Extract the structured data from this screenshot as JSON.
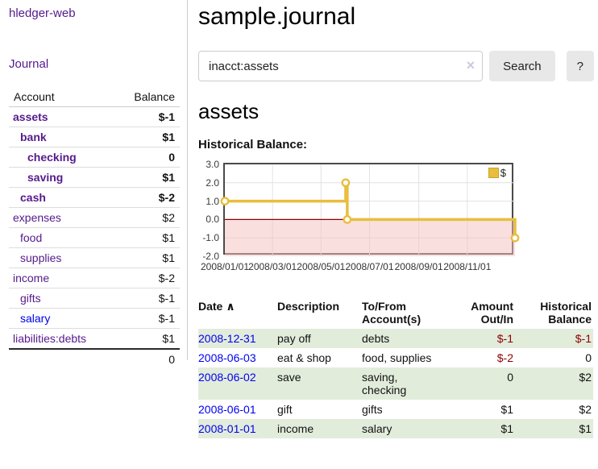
{
  "app": {
    "brand": "hledger-web",
    "nav_journal": "Journal"
  },
  "sidebar": {
    "account_header": "Account",
    "balance_header": "Balance",
    "accounts": [
      {
        "name": "assets",
        "balance": "$-1",
        "depth": 0,
        "bold": true,
        "neg": "strong",
        "link_color": "purple"
      },
      {
        "name": "bank",
        "balance": "$1",
        "depth": 1,
        "bold": true,
        "neg": "none",
        "link_color": "purple"
      },
      {
        "name": "checking",
        "balance": "0",
        "depth": 2,
        "bold": true,
        "neg": "none",
        "link_color": "purple"
      },
      {
        "name": "saving",
        "balance": "$1",
        "depth": 2,
        "bold": true,
        "neg": "none",
        "link_color": "purple"
      },
      {
        "name": "cash",
        "balance": "$-2",
        "depth": 1,
        "bold": true,
        "neg": "strong",
        "link_color": "purple"
      },
      {
        "name": "expenses",
        "balance": "$2",
        "depth": 0,
        "bold": false,
        "neg": "none",
        "link_color": "purple"
      },
      {
        "name": "food",
        "balance": "$1",
        "depth": 1,
        "bold": false,
        "neg": "none",
        "link_color": "purple"
      },
      {
        "name": "supplies",
        "balance": "$1",
        "depth": 1,
        "bold": false,
        "neg": "none",
        "link_color": "purple"
      },
      {
        "name": "income",
        "balance": "$-2",
        "depth": 0,
        "bold": false,
        "neg": "pale",
        "link_color": "purple"
      },
      {
        "name": "gifts",
        "balance": "$-1",
        "depth": 1,
        "bold": false,
        "neg": "pale",
        "link_color": "purple"
      },
      {
        "name": "salary",
        "balance": "$-1",
        "depth": 1,
        "bold": false,
        "neg": "pale",
        "link_color": "blue"
      },
      {
        "name": "liabilities:debts",
        "balance": "$1",
        "depth": 0,
        "bold": false,
        "neg": "none",
        "link_color": "purple"
      }
    ],
    "total": "0"
  },
  "header": {
    "title": "sample.journal"
  },
  "search": {
    "value": "inacct:assets",
    "clear_icon": "×",
    "button": "Search",
    "help_button": "?"
  },
  "register": {
    "heading": "assets",
    "table": {
      "headers": [
        {
          "label": "Date",
          "align": "left",
          "sort_icon": "∧",
          "interactable": true
        },
        {
          "label": "Description",
          "align": "left"
        },
        {
          "label": "To/From\nAccount(s)",
          "align": "left"
        },
        {
          "label": "Amount\nOut/In",
          "align": "right"
        },
        {
          "label": "Historical\nBalance",
          "align": "right"
        }
      ],
      "rows": [
        {
          "date": "2008-12-31",
          "description": "pay off",
          "accounts": "debts",
          "amount": "$-1",
          "balance": "$-1",
          "amount_neg": true,
          "balance_neg": true,
          "stripe": true
        },
        {
          "date": "2008-06-03",
          "description": "eat & shop",
          "accounts": "food, supplies",
          "amount": "$-2",
          "balance": "0",
          "amount_neg": true,
          "balance_neg": false,
          "stripe": false
        },
        {
          "date": "2008-06-02",
          "description": "save",
          "accounts": "saving,\nchecking",
          "amount": "0",
          "balance": "$2",
          "amount_neg": false,
          "balance_neg": false,
          "stripe": true
        },
        {
          "date": "2008-06-01",
          "description": "gift",
          "accounts": "gifts",
          "amount": "$1",
          "balance": "$2",
          "amount_neg": false,
          "balance_neg": false,
          "stripe": false
        },
        {
          "date": "2008-01-01",
          "description": "income",
          "accounts": "salary",
          "amount": "$1",
          "balance": "$1",
          "amount_neg": false,
          "balance_neg": false,
          "stripe": true
        }
      ]
    }
  },
  "chart_data": {
    "type": "line",
    "step": true,
    "title": "Historical Balance:",
    "series": [
      {
        "name": "$",
        "color": "#e9be3d",
        "points": [
          {
            "date": "2008-01-01",
            "value": 1
          },
          {
            "date": "2008-06-01",
            "value": 2
          },
          {
            "date": "2008-06-03",
            "value": 0
          },
          {
            "date": "2008-12-31",
            "value": -1
          }
        ]
      }
    ],
    "x_start": "2008-01-01",
    "x_end": "2008-12-31",
    "x_ticks": [
      "2008/01/01",
      "2008/03/01",
      "2008/05/01",
      "2008/07/01",
      "2008/09/01",
      "2008/11/01"
    ],
    "y_ticks": [
      3.0,
      2.0,
      1.0,
      0.0,
      -1.0,
      -2.0
    ],
    "ylim": [
      -2,
      3
    ],
    "grid": true,
    "grid_color": "#e2e2e2",
    "negative_region_fill": "rgba(246,192,192,0.5)",
    "zero_line_color": "#8b0000",
    "legend": {
      "label": "$",
      "swatch_color": "#e9be3d",
      "position": "top-right"
    }
  }
}
